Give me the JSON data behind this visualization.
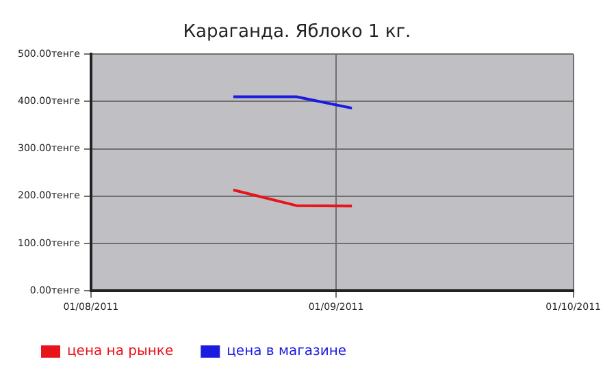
{
  "chart_data": {
    "type": "line",
    "title": "Караганда. Яблоко 1 кг.",
    "x": [
      "2011-08-19",
      "2011-08-27",
      "2011-09-03"
    ],
    "series": [
      {
        "name": "цена на рынке",
        "color": "#e8141c",
        "values": [
          213,
          180,
          179
        ]
      },
      {
        "name": "цена в магазине",
        "color": "#1c1ce0",
        "values": [
          410,
          410,
          386
        ]
      }
    ],
    "xlim": [
      "2011-08-01",
      "2011-10-01"
    ],
    "xticks": [
      {
        "value": "2011-08-01",
        "label": "01/08/2011"
      },
      {
        "value": "2011-09-01",
        "label": "01/09/2011"
      },
      {
        "value": "2011-10-01",
        "label": "01/10/2011"
      }
    ],
    "ylim": [
      0,
      500
    ],
    "yticks": [
      {
        "value": 0,
        "label": "0.00тенге"
      },
      {
        "value": 100,
        "label": "100.00тенге"
      },
      {
        "value": 200,
        "label": "200.00тенге"
      },
      {
        "value": 300,
        "label": "300.00тенге"
      },
      {
        "value": 400,
        "label": "400.00тенге"
      },
      {
        "value": 500,
        "label": "500.00тенге"
      }
    ],
    "grid": true,
    "legend": "bottom left",
    "marker": "none",
    "line_style": "solid"
  }
}
